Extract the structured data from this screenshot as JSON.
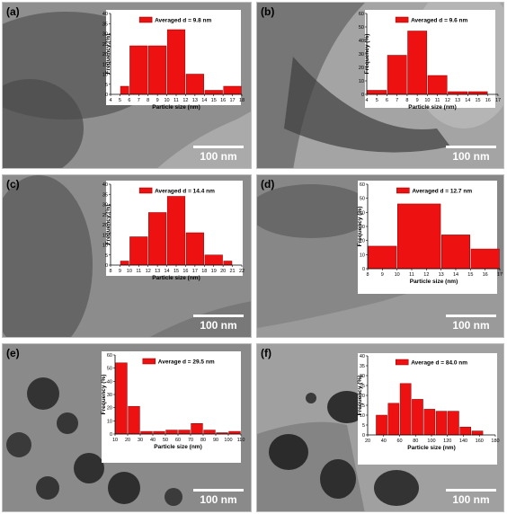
{
  "colors": {
    "bar": "#ee1111",
    "bar_stroke": "#8a0000",
    "inset_bg": "#ffffff"
  },
  "panels": [
    {
      "label": "(a)",
      "scale_label": "100 nm",
      "tone": "#8f8f8f"
    },
    {
      "label": "(b)",
      "scale_label": "100 nm",
      "tone": "#a4a4a4"
    },
    {
      "label": "(c)",
      "scale_label": "100 nm",
      "tone": "#8c8c8c"
    },
    {
      "label": "(d)",
      "scale_label": "100 nm",
      "tone": "#9a9a9a"
    },
    {
      "label": "(e)",
      "scale_label": "100 nm",
      "tone": "#8a8a8a"
    },
    {
      "label": "(f)",
      "scale_label": "100 nm",
      "tone": "#a0a0a0"
    }
  ],
  "chart_data": [
    {
      "type": "bar",
      "legend": "Averaged d = 9.8 nm",
      "xlabel": "Particle size (nm)",
      "ylabel": "Frequency (%)",
      "ylim": [
        0,
        40
      ],
      "yticks": [
        0,
        5,
        10,
        15,
        20,
        25,
        30,
        35,
        40
      ],
      "xlim": [
        4,
        18
      ],
      "xticks": [
        4,
        5,
        6,
        7,
        8,
        9,
        10,
        11,
        12,
        13,
        14,
        15,
        16,
        17,
        18
      ],
      "bins": [
        [
          5,
          6
        ],
        [
          6,
          8
        ],
        [
          8,
          10
        ],
        [
          10,
          12
        ],
        [
          12,
          14
        ],
        [
          14,
          16
        ],
        [
          16,
          18
        ]
      ],
      "values": [
        4,
        24,
        24,
        32,
        10,
        2,
        4
      ]
    },
    {
      "type": "bar",
      "legend": "Averaged d = 9.6 nm",
      "xlabel": "Particle size (nm)",
      "ylabel": "Frequency (%)",
      "ylim": [
        0,
        60
      ],
      "yticks": [
        0,
        10,
        20,
        30,
        40,
        50,
        60
      ],
      "xlim": [
        4,
        17
      ],
      "xticks": [
        4,
        5,
        6,
        7,
        8,
        9,
        10,
        11,
        12,
        13,
        14,
        15,
        16,
        17
      ],
      "bins": [
        [
          4,
          6
        ],
        [
          6,
          8
        ],
        [
          8,
          10
        ],
        [
          10,
          12
        ],
        [
          12,
          14
        ],
        [
          14,
          16
        ],
        [
          16,
          17
        ]
      ],
      "values": [
        3,
        29,
        47,
        14,
        2,
        2,
        0
      ]
    },
    {
      "type": "bar",
      "legend": "Averaged d = 14.4 nm",
      "xlabel": "Particle size (nm)",
      "ylabel": "Frequency (%)",
      "ylim": [
        0,
        40
      ],
      "yticks": [
        0,
        5,
        10,
        15,
        20,
        25,
        30,
        35,
        40
      ],
      "xlim": [
        8,
        22
      ],
      "xticks": [
        8,
        9,
        10,
        11,
        12,
        13,
        14,
        15,
        16,
        17,
        18,
        19,
        20,
        21,
        22
      ],
      "bins": [
        [
          9,
          10
        ],
        [
          10,
          12
        ],
        [
          12,
          14
        ],
        [
          14,
          16
        ],
        [
          16,
          18
        ],
        [
          18,
          20
        ],
        [
          20,
          21
        ]
      ],
      "values": [
        2,
        14,
        26,
        34,
        16,
        5,
        2
      ]
    },
    {
      "type": "bar",
      "legend": "Averaged d = 12.7 nm",
      "xlabel": "Particle size (nm)",
      "ylabel": "Frequency (%)",
      "ylim": [
        0,
        60
      ],
      "yticks": [
        0,
        10,
        20,
        30,
        40,
        50,
        60
      ],
      "xlim": [
        8,
        17
      ],
      "xticks": [
        8,
        9,
        10,
        11,
        12,
        13,
        14,
        15,
        16,
        17
      ],
      "bins": [
        [
          8,
          10
        ],
        [
          10,
          13
        ],
        [
          13,
          15
        ],
        [
          15,
          17
        ]
      ],
      "values": [
        16,
        46,
        24,
        14
      ]
    },
    {
      "type": "bar",
      "legend": "Average d = 29.5 nm",
      "xlabel": "Particle size (nm)",
      "ylabel": "Frequency (%)",
      "ylim": [
        0,
        60
      ],
      "yticks": [
        0,
        10,
        20,
        30,
        40,
        50,
        60
      ],
      "xlim": [
        10,
        110
      ],
      "xticks": [
        10,
        20,
        30,
        40,
        50,
        60,
        70,
        80,
        90,
        100,
        110
      ],
      "bins": [
        [
          10,
          20
        ],
        [
          20,
          30
        ],
        [
          30,
          40
        ],
        [
          40,
          50
        ],
        [
          50,
          60
        ],
        [
          60,
          70
        ],
        [
          70,
          80
        ],
        [
          80,
          90
        ],
        [
          90,
          100
        ],
        [
          100,
          110
        ]
      ],
      "values": [
        54,
        21,
        2,
        2,
        3,
        3,
        8,
        3,
        1,
        2
      ]
    },
    {
      "type": "bar",
      "legend": "Average d = 84.0 nm",
      "xlabel": "Particle size (nm)",
      "ylabel": "Frequency (%)",
      "ylim": [
        0,
        40
      ],
      "yticks": [
        0,
        5,
        10,
        15,
        20,
        25,
        30,
        35,
        40
      ],
      "xlim": [
        20,
        180
      ],
      "xticks": [
        20,
        40,
        60,
        80,
        100,
        120,
        140,
        160,
        180
      ],
      "bins": [
        [
          30,
          45
        ],
        [
          45,
          60
        ],
        [
          60,
          75
        ],
        [
          75,
          90
        ],
        [
          90,
          105
        ],
        [
          105,
          120
        ],
        [
          120,
          135
        ],
        [
          135,
          150
        ],
        [
          150,
          165
        ]
      ],
      "values": [
        10,
        16,
        26,
        18,
        13,
        12,
        12,
        4,
        2
      ]
    }
  ]
}
